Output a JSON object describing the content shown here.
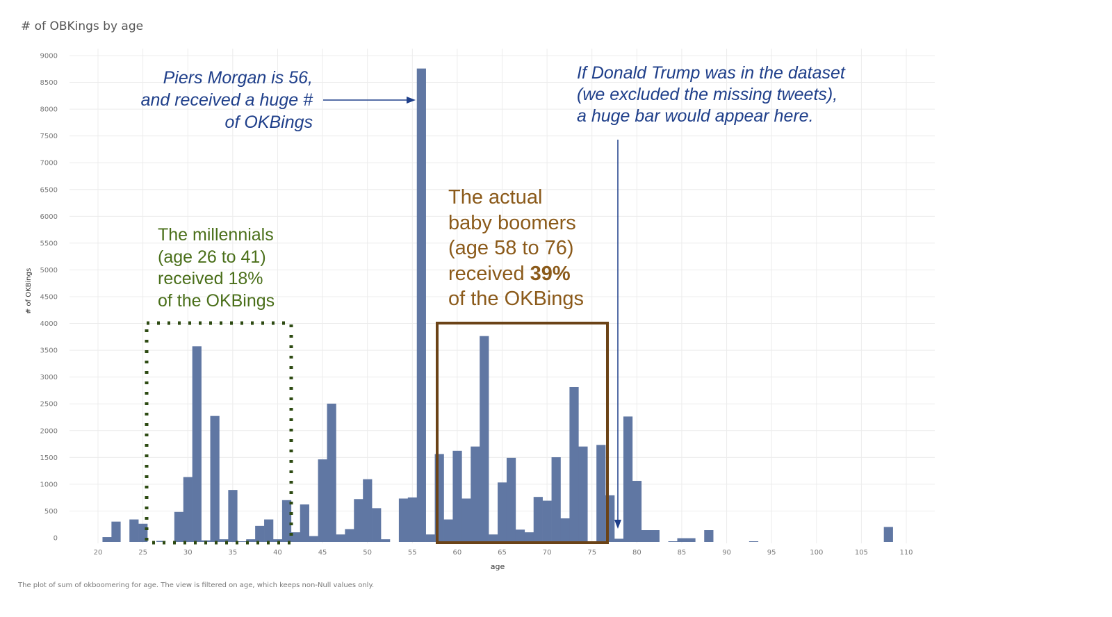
{
  "title": "# of OBKings by age",
  "caption": "The plot of sum of okboomering for age. The view is filtered on age, which keeps non-Null values only.",
  "colors": {
    "bar": "#6077a3",
    "grid": "#ececec",
    "tick_text": "#777777",
    "piers_text": "#1f3f8a",
    "millennial_text": "#4a6f1a",
    "millennial_box": "#2d4a12",
    "boomer_text": "#8b5a1a",
    "boomer_box": "#6b4317"
  },
  "annotations": {
    "piers": [
      "Piers Morgan is 56,",
      "and received a huge #",
      "of OKBings"
    ],
    "trump": [
      "If Donald Trump was in the dataset",
      "(we excluded the missing tweets),",
      "a huge bar would appear here."
    ],
    "millennials": [
      "The millennials",
      "(age 26 to 41)",
      "received 18%",
      "of the OKBings"
    ],
    "boomers": {
      "lines": [
        "The actual",
        "baby boomers",
        "(age 58 to 76)"
      ],
      "received_prefix": "received ",
      "received_pct": "39%",
      "last_line": "of the OKBings"
    }
  },
  "chart_data": {
    "type": "bar",
    "title": "# of OBKings by age",
    "xlabel": "age",
    "ylabel": "# of OKBings",
    "xlim": [
      19,
      111
    ],
    "ylim": [
      0,
      9000
    ],
    "x_ticks": [
      20,
      25,
      30,
      35,
      40,
      45,
      50,
      55,
      60,
      65,
      70,
      75,
      80,
      85,
      90,
      95,
      100,
      105,
      110
    ],
    "y_ticks": [
      0,
      500,
      1000,
      1500,
      2000,
      2500,
      3000,
      3500,
      4000,
      4500,
      5000,
      5500,
      6000,
      6500,
      7000,
      7500,
      8000,
      8500,
      9000
    ],
    "grid": true,
    "x": [
      20,
      21,
      22,
      23,
      24,
      25,
      26,
      27,
      28,
      29,
      30,
      31,
      32,
      33,
      34,
      35,
      36,
      37,
      38,
      39,
      40,
      41,
      42,
      43,
      44,
      45,
      46,
      47,
      48,
      49,
      50,
      51,
      52,
      53,
      54,
      55,
      56,
      57,
      58,
      59,
      60,
      61,
      62,
      63,
      64,
      65,
      66,
      67,
      68,
      69,
      70,
      71,
      72,
      73,
      74,
      75,
      76,
      77,
      78,
      79,
      80,
      81,
      82,
      83,
      84,
      85,
      86,
      87,
      88,
      89,
      90,
      91,
      92,
      93,
      94,
      95,
      96,
      97,
      98,
      99,
      100,
      101,
      102,
      103,
      104,
      105,
      106,
      107,
      108,
      109,
      110
    ],
    "values": [
      0,
      90,
      380,
      0,
      420,
      340,
      0,
      20,
      0,
      560,
      1210,
      3650,
      30,
      2350,
      50,
      970,
      10,
      50,
      300,
      420,
      50,
      780,
      180,
      700,
      110,
      1540,
      2580,
      140,
      240,
      800,
      1170,
      630,
      50,
      0,
      810,
      830,
      8830,
      140,
      1640,
      420,
      1700,
      810,
      1780,
      3840,
      140,
      1110,
      1570,
      230,
      180,
      840,
      770,
      1580,
      440,
      2890,
      1780,
      0,
      1810,
      870,
      60,
      2340,
      1140,
      220,
      220,
      0,
      10,
      70,
      70,
      0,
      220,
      0,
      0,
      0,
      0,
      10,
      0,
      0,
      0,
      0,
      0,
      0,
      0,
      0,
      0,
      0,
      0,
      0,
      0,
      0,
      280,
      0,
      0
    ]
  }
}
